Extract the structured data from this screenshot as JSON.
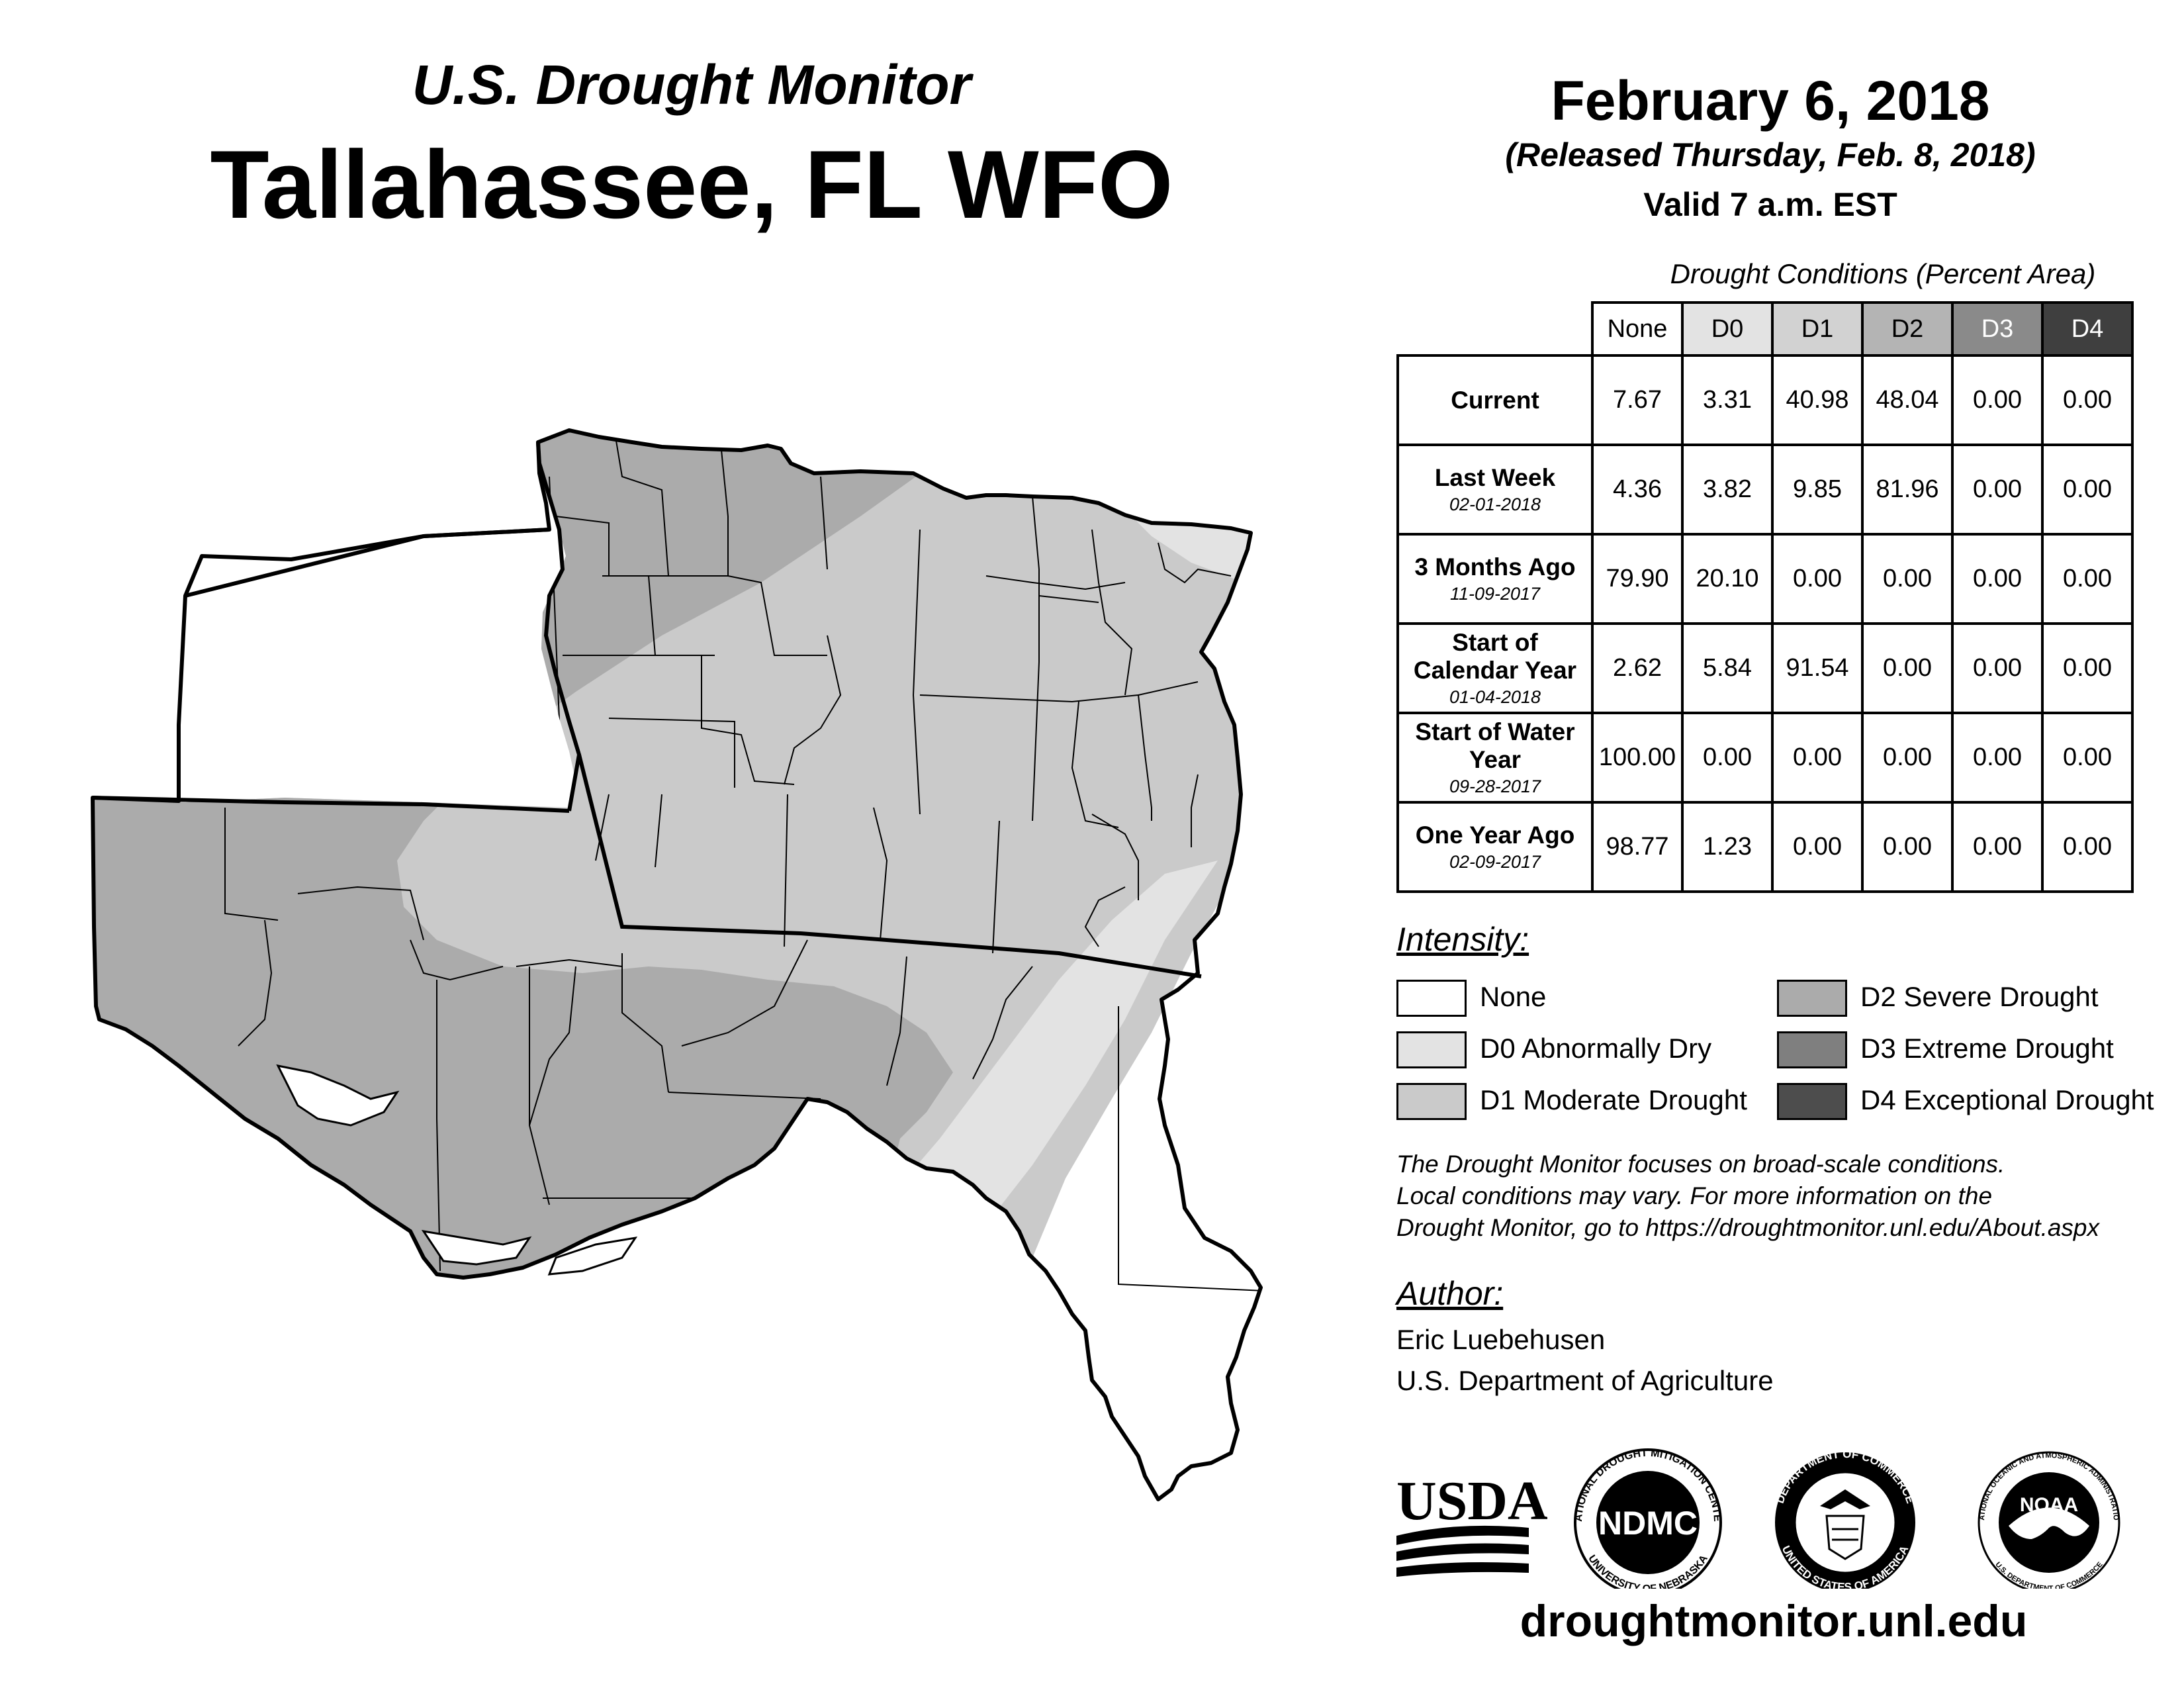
{
  "header": {
    "subtitle": "U.S. Drought Monitor",
    "title": "Tallahassee, FL WFO",
    "date": "February 6, 2018",
    "released": "(Released Thursday, Feb. 8, 2018)",
    "valid": "Valid 7 a.m. EST"
  },
  "table": {
    "caption": "Drought Conditions (Percent Area)",
    "columns": [
      "None",
      "D0",
      "D1",
      "D2",
      "D3",
      "D4"
    ],
    "rows": [
      {
        "label": "Current",
        "date": "",
        "values": [
          "7.67",
          "3.31",
          "40.98",
          "48.04",
          "0.00",
          "0.00"
        ]
      },
      {
        "label": "Last Week",
        "date": "02-01-2018",
        "values": [
          "4.36",
          "3.82",
          "9.85",
          "81.96",
          "0.00",
          "0.00"
        ]
      },
      {
        "label": "3 Months Ago",
        "date": "11-09-2017",
        "values": [
          "79.90",
          "20.10",
          "0.00",
          "0.00",
          "0.00",
          "0.00"
        ]
      },
      {
        "label": "Start of Calendar Year",
        "date": "01-04-2018",
        "values": [
          "2.62",
          "5.84",
          "91.54",
          "0.00",
          "0.00",
          "0.00"
        ]
      },
      {
        "label": "Start of Water Year",
        "date": "09-28-2017",
        "values": [
          "100.00",
          "0.00",
          "0.00",
          "0.00",
          "0.00",
          "0.00"
        ]
      },
      {
        "label": "One Year Ago",
        "date": "02-09-2017",
        "values": [
          "98.77",
          "1.23",
          "0.00",
          "0.00",
          "0.00",
          "0.00"
        ]
      }
    ]
  },
  "intensity": {
    "heading": "Intensity:",
    "items": [
      {
        "label": "None",
        "color": "#ffffff"
      },
      {
        "label": "D0 Abnormally Dry",
        "color": "#e3e3e3"
      },
      {
        "label": "D1 Moderate Drought",
        "color": "#cacaca"
      },
      {
        "label": "D2 Severe Drought",
        "color": "#ababab"
      },
      {
        "label": "D3 Extreme Drought",
        "color": "#7f7f7f"
      },
      {
        "label": "D4 Exceptional Drought",
        "color": "#4d4d4d"
      }
    ]
  },
  "note": [
    "The Drought Monitor focuses on broad-scale conditions.",
    "Local conditions may vary. For more information on the",
    "Drought Monitor, go to https://droughtmonitor.unl.edu/About.aspx"
  ],
  "author": {
    "heading": "Author:",
    "name": "Eric Luebehusen",
    "org": "U.S. Department of Agriculture"
  },
  "logos": {
    "usda": "USDA",
    "ndmc": "NDMC",
    "ndmc_ring_top": "NATIONAL DROUGHT MITIGATION CENTER",
    "ndmc_ring_bottom": "UNIVERSITY OF NEBRASKA",
    "doc_ring_top": "DEPARTMENT OF COMMERCE",
    "doc_ring_bottom": "UNITED STATES OF AMERICA",
    "noaa": "NOAA",
    "noaa_ring_top": "NATIONAL OCEANIC AND ATMOSPHERIC ADMINISTRATION",
    "noaa_ring_bottom": "U.S. DEPARTMENT OF COMMERCE"
  },
  "website": "droughtmonitor.unl.edu",
  "map_colors": {
    "none": "#ffffff",
    "d0": "#e3e3e3",
    "d1": "#cacaca",
    "d2": "#ababab",
    "header_d0": "#e3e3e3",
    "header_d1": "#d2d2d2",
    "header_d2": "#b4b4b4",
    "header_d3": "#8a8a8a",
    "header_d4": "#3f3f3f"
  }
}
